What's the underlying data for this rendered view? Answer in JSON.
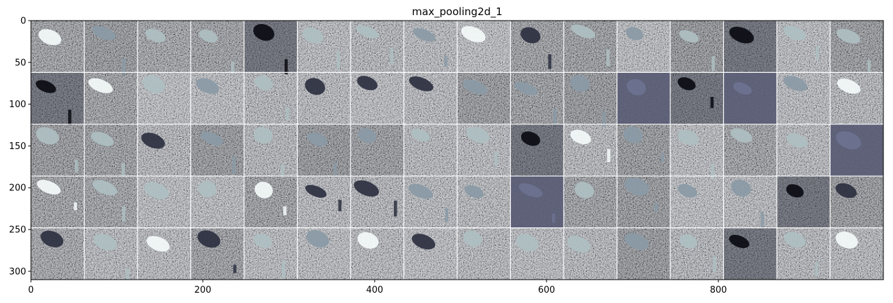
{
  "chart_data": {
    "type": "heatmap",
    "title": "max_pooling2d_1",
    "xlabel": "",
    "ylabel": "",
    "xlim": [
      0,
      992
    ],
    "ylim": [
      310,
      0
    ],
    "grid_rows": 5,
    "grid_cols": 16,
    "tile_size": 62,
    "x_ticks": [
      0,
      200,
      400,
      600,
      800
    ],
    "y_ticks": [
      0,
      50,
      100,
      150,
      200,
      250,
      300
    ],
    "colormap": "bone",
    "colors": {
      "low": "#0b0b12",
      "mid": "#6a7386",
      "high": "#e7f0f0",
      "grid_line": "#ffffff",
      "axis": "#000000"
    }
  }
}
